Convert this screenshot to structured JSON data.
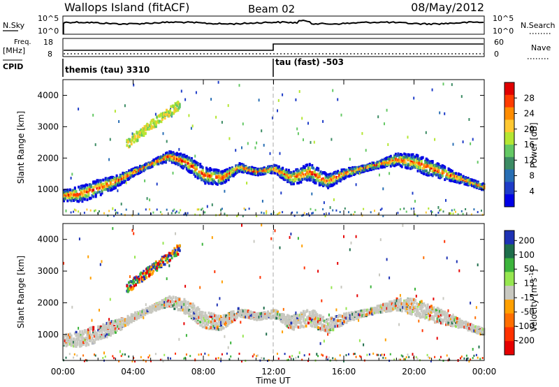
{
  "header": {
    "site": "Wallops Island (fitACF)",
    "beam": "Beam 02",
    "date": "08/May/2012"
  },
  "noise_panel": {
    "left_label": "N.Sky",
    "left_ticks": [
      "10^5",
      "10^0"
    ],
    "right_label": "N.Search",
    "right_ticks": [
      "10^5",
      "10^0"
    ]
  },
  "freq_panel": {
    "left_label_line1": "Freq.",
    "left_label_line2": "[MHz]",
    "left_ticks": [
      "18",
      "8"
    ],
    "right_label": "Nave",
    "right_ticks": [
      "60",
      "0"
    ]
  },
  "cpid_panel": {
    "label": "CPID",
    "modes": [
      "themis (tau) 3310",
      "tau (fast) -503"
    ]
  },
  "x_axis": {
    "title": "Time UT",
    "tick_labels": [
      "00:00",
      "04:00",
      "08:00",
      "12:00",
      "16:00",
      "20:00",
      "00:00"
    ]
  },
  "chart_data": [
    {
      "type": "heatmap",
      "panel": "power",
      "ylabel": "Slant Range [km]",
      "yticks": [
        1000,
        2000,
        3000,
        4000
      ],
      "ylim": [
        180,
        4500
      ],
      "xlim_hours": [
        0,
        24
      ],
      "colorbar_label": "Power [dB]",
      "colorbar_ticks": [
        "28",
        "24",
        "20",
        "16",
        "12",
        "8",
        "4"
      ],
      "colorbar_colors": [
        "#e00000",
        "#ff3c00",
        "#ff8c00",
        "#ffc832",
        "#b4e632",
        "#64c864",
        "#3c8c64",
        "#286eb4",
        "#1e3cc8",
        "#0000e6"
      ],
      "echo_band_km": {
        "hours": [
          0,
          1,
          2,
          3,
          4,
          5,
          6,
          7,
          8,
          9,
          10,
          11,
          12,
          13,
          14,
          15,
          16,
          17,
          18,
          19,
          20,
          21,
          22,
          23,
          24
        ],
        "range": [
          850,
          900,
          1100,
          1300,
          1600,
          1850,
          2100,
          1900,
          1500,
          1400,
          1750,
          1600,
          1700,
          1400,
          1600,
          1300,
          1550,
          1700,
          1850,
          2000,
          1900,
          1700,
          1500,
          1300,
          1100
        ]
      }
    },
    {
      "type": "heatmap",
      "panel": "velocity",
      "ylabel": "Slant Range [km]",
      "yticks": [
        1000,
        2000,
        3000,
        4000
      ],
      "ylim": [
        180,
        4500
      ],
      "xlim_hours": [
        0,
        24
      ],
      "colorbar_label": "Velocity [m s^-1]",
      "colorbar_ticks": [
        "200",
        "100",
        "50",
        "15",
        "-15",
        "-50",
        "-100",
        "-200"
      ],
      "colorbar_colors": [
        "#1e32b4",
        "#1e6e4b",
        "#3cb43c",
        "#96e650",
        "#c8c8c0",
        "#ffa000",
        "#ff6e00",
        "#ff3200",
        "#e60000"
      ]
    }
  ]
}
